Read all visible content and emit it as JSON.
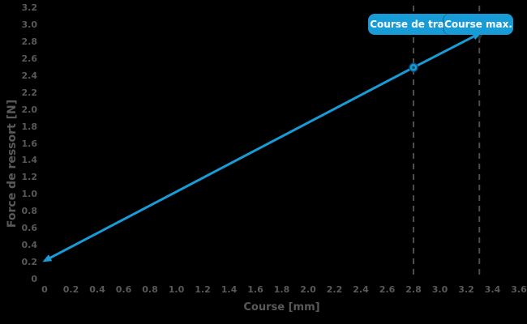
{
  "chart_data": {
    "type": "line",
    "title": "",
    "xlabel": "Course [mm]",
    "ylabel": "Force de ressort [N]",
    "xlim": [
      0,
      3.6
    ],
    "ylim": [
      0,
      3.2
    ],
    "x_ticks": [
      "0",
      "0.2",
      "0.4",
      "0.6",
      "0.8",
      "1.0",
      "1.2",
      "1.4",
      "1.6",
      "1.8",
      "2.0",
      "2.2",
      "2.4",
      "2.6",
      "2.8",
      "3.0",
      "3.2",
      "3.4",
      "3.6"
    ],
    "y_ticks": [
      "0",
      "0.2",
      "0.4",
      "0.6",
      "0.8",
      "1.0",
      "1.2",
      "1.4",
      "1.6",
      "1.8",
      "2.0",
      "2.2",
      "2.4",
      "2.6",
      "2.8",
      "3.0",
      "3.2"
    ],
    "grid": false,
    "legend": "none",
    "series": [
      {
        "points": [
          {
            "x": 0,
            "y": 0.22
          },
          {
            "x": 2.8,
            "y": 2.5
          },
          {
            "x": 3.3,
            "y": 2.9
          }
        ],
        "marker_at": {
          "x": 2.8,
          "y": 2.5
        },
        "start_arrow": true,
        "end_arrow": true
      }
    ],
    "annotations": [
      {
        "label": "Course de trava",
        "x": 2.8
      },
      {
        "label": "Course max.",
        "x": 3.3
      }
    ],
    "colors": {
      "background": "#000000",
      "line": "#189cd8",
      "badge": "#189cd8",
      "badge_text": "#ffffff",
      "tick_text": "#595959",
      "dashed_line": "#4d4d4d",
      "marker_stroke": "#0a4d77",
      "pointer": "#2e2e2e"
    }
  }
}
